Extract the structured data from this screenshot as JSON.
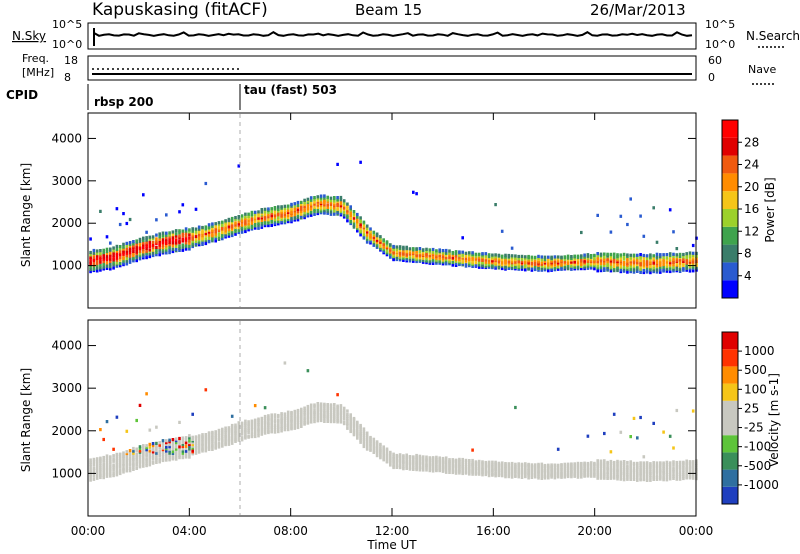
{
  "header": {
    "station": "Kapuskasing (fitACF)",
    "beam": "Beam 15",
    "date": "26/Mar/2013"
  },
  "noise_panel": {
    "left_label": "N.Sky",
    "left_ticks": [
      "10^5",
      "10^0"
    ],
    "right_label": "N.Search",
    "right_ticks": [
      "10^5",
      "10^0"
    ]
  },
  "freq_panel": {
    "left_label_1": "Freq.",
    "left_label_2": "[MHz]",
    "left_ticks": [
      "18",
      "8"
    ],
    "right_label": "Nave",
    "right_ticks": [
      "60",
      "0"
    ]
  },
  "cpid": {
    "label": "CPID",
    "segments": [
      {
        "name": "rbsp 200",
        "start_hour": 0
      },
      {
        "name": "tau (fast) 503",
        "start_hour": 6
      }
    ]
  },
  "x_axis": {
    "label": "Time UT",
    "ticks": [
      "00:00",
      "04:00",
      "08:00",
      "12:00",
      "16:00",
      "20:00",
      "00:00"
    ],
    "range_hours": [
      0,
      24
    ]
  },
  "power_panel": {
    "ylabel": "Slant Range [km]",
    "yticks": [
      "1000",
      "2000",
      "3000",
      "4000"
    ],
    "colorbar_label": "Power [dB]",
    "colorbar_ticks": [
      "28",
      "24",
      "20",
      "16",
      "12",
      "8",
      "4"
    ],
    "colors": [
      "#0000ff",
      "#2a5bd0",
      "#3a7d6a",
      "#3fa34d",
      "#9cd12b",
      "#f5c518",
      "#ff8c00",
      "#f05a0f",
      "#e00000",
      "#ff0000"
    ]
  },
  "velocity_panel": {
    "ylabel": "Slant Range [km]",
    "yticks": [
      "1000",
      "2000",
      "3000",
      "4000"
    ],
    "colorbar_label": "Velocity [m s-1]",
    "colorbar_ticks": [
      "1000",
      "500",
      "100",
      "25",
      "-25",
      "-100",
      "-500",
      "-1000"
    ],
    "colors": [
      "#1f3fbf",
      "#2f6fa0",
      "#3a8f5a",
      "#5ec43a",
      "#c8c8c0",
      "#c8c8c0",
      "#f5c518",
      "#ff8c00",
      "#ff3300",
      "#e00000"
    ],
    "ground_scatter_color": "#c8c8c0"
  },
  "chart_data": {
    "type": "heatmap",
    "x_unit": "hours UT",
    "y_unit": "km",
    "ylim": [
      0,
      4600
    ],
    "xlim": [
      0,
      24
    ],
    "main_echo_band": [
      {
        "t": 0.0,
        "r": 1150
      },
      {
        "t": 1.0,
        "r": 1250
      },
      {
        "t": 2.0,
        "r": 1450
      },
      {
        "t": 3.0,
        "r": 1600
      },
      {
        "t": 4.0,
        "r": 1700
      },
      {
        "t": 5.0,
        "r": 1850
      },
      {
        "t": 6.0,
        "r": 2050
      },
      {
        "t": 7.0,
        "r": 2200
      },
      {
        "t": 8.0,
        "r": 2300
      },
      {
        "t": 9.0,
        "r": 2500
      },
      {
        "t": 10.0,
        "r": 2450
      },
      {
        "t": 11.0,
        "r": 1800
      },
      {
        "t": 12.0,
        "r": 1350
      },
      {
        "t": 14.0,
        "r": 1250
      },
      {
        "t": 16.0,
        "r": 1150
      },
      {
        "t": 18.0,
        "r": 1100
      },
      {
        "t": 20.0,
        "r": 1150
      },
      {
        "t": 22.0,
        "r": 1100
      },
      {
        "t": 24.0,
        "r": 1150
      }
    ]
  }
}
